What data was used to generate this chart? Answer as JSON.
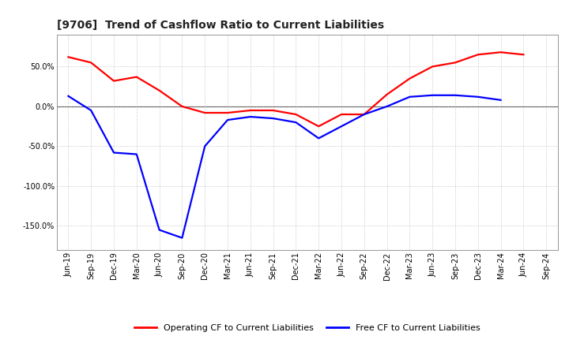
{
  "title": "[9706]  Trend of Cashflow Ratio to Current Liabilities",
  "x_labels": [
    "Jun-19",
    "Sep-19",
    "Dec-19",
    "Mar-20",
    "Jun-20",
    "Sep-20",
    "Dec-20",
    "Mar-21",
    "Jun-21",
    "Sep-21",
    "Dec-21",
    "Mar-22",
    "Jun-22",
    "Sep-22",
    "Dec-22",
    "Mar-23",
    "Jun-23",
    "Sep-23",
    "Dec-23",
    "Mar-24",
    "Jun-24",
    "Sep-24"
  ],
  "operating_cf": [
    62,
    55,
    32,
    37,
    20,
    0,
    -8,
    -8,
    -5,
    -5,
    -10,
    -25,
    -10,
    -10,
    15,
    35,
    50,
    55,
    65,
    68,
    65,
    null
  ],
  "free_cf": [
    13,
    -5,
    -58,
    -60,
    -155,
    -165,
    -50,
    -17,
    -13,
    -15,
    -20,
    -40,
    -25,
    -10,
    0,
    12,
    14,
    14,
    12,
    8,
    null,
    null
  ],
  "operating_color": "#FF0000",
  "free_color": "#0000FF",
  "ylim": [
    -180,
    90
  ],
  "yticks": [
    -150,
    -100,
    -50,
    0,
    50
  ],
  "background_color": "#FFFFFF",
  "grid_color": "#BBBBBB",
  "title_fontsize": 10,
  "tick_fontsize": 7,
  "legend_fontsize": 8,
  "legend_labels": [
    "Operating CF to Current Liabilities",
    "Free CF to Current Liabilities"
  ]
}
